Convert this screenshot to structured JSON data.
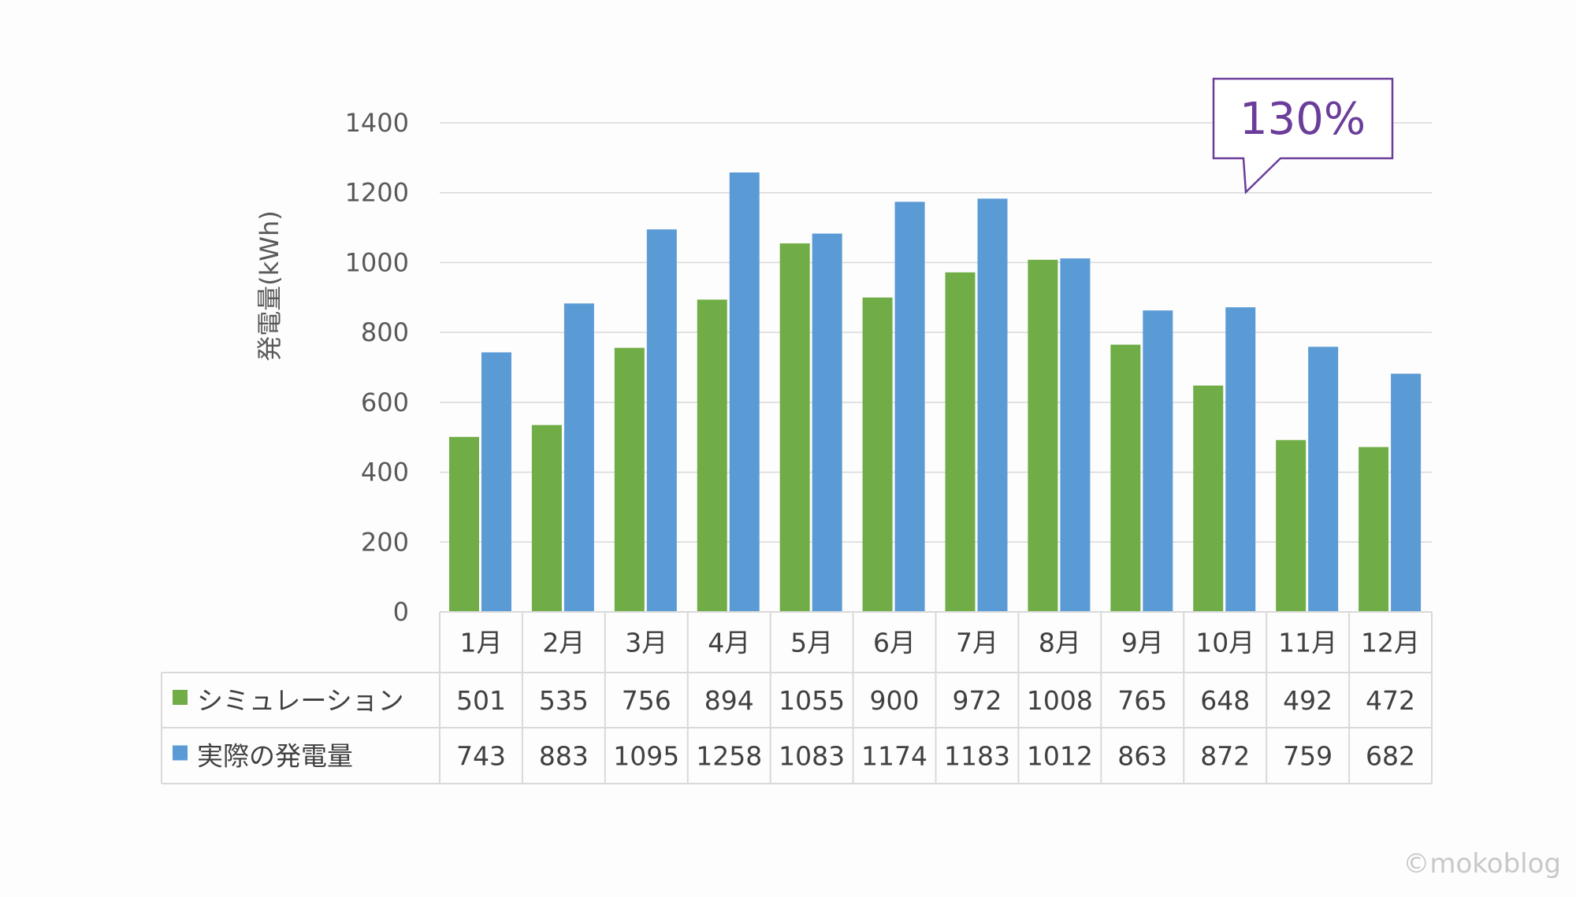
{
  "chart_data": {
    "type": "bar",
    "title": "",
    "xlabel": "",
    "ylabel": "発電量(kWh)",
    "ylim": [
      0,
      1400
    ],
    "yticks": [
      0,
      200,
      400,
      600,
      800,
      1000,
      1200,
      1400
    ],
    "grid": true,
    "legend": "data-table-left",
    "categories": [
      "1月",
      "2月",
      "3月",
      "4月",
      "5月",
      "6月",
      "7月",
      "8月",
      "9月",
      "10月",
      "11月",
      "12月"
    ],
    "series": [
      {
        "name": "シミュレーション",
        "color": "#70ad47",
        "values": [
          501,
          535,
          756,
          894,
          1055,
          900,
          972,
          1008,
          765,
          648,
          492,
          472
        ]
      },
      {
        "name": "実際の発電量",
        "color": "#5b9bd5",
        "values": [
          743,
          883,
          1095,
          1258,
          1083,
          1174,
          1183,
          1012,
          863,
          872,
          759,
          682
        ]
      }
    ],
    "annotation": {
      "text": "130%",
      "color": "#6a3d9a"
    }
  },
  "watermark": "©mokoblog"
}
